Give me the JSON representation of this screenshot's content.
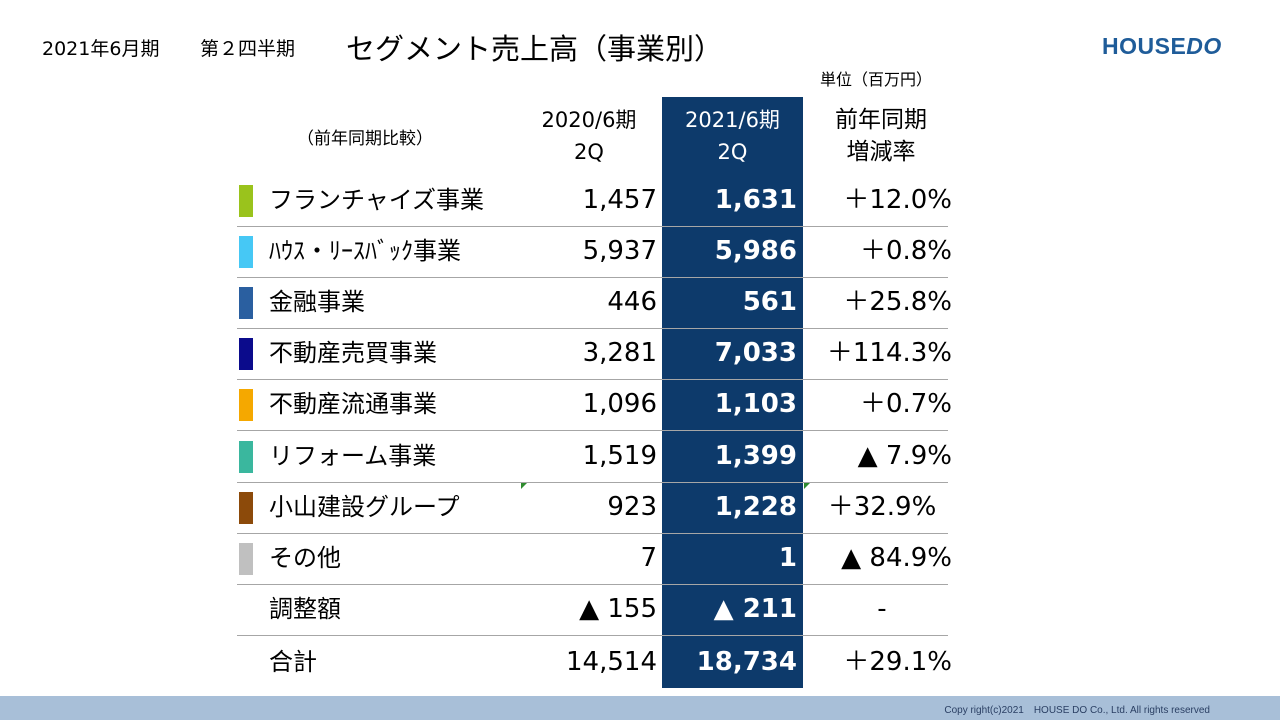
{
  "header": {
    "period": "2021年6月期",
    "quarter": "第２四半期",
    "title": "セグメント売上高（事業別）",
    "unit": "単位（百万円）",
    "compare_note": "（前年同期比較）"
  },
  "logo": {
    "text_house": "HOUSE",
    "text_do": "DO"
  },
  "columns": {
    "prev": [
      "2020/6期",
      "2Q"
    ],
    "curr": [
      "2021/6期",
      "2Q"
    ],
    "rate": [
      "前年同期",
      "増減率"
    ]
  },
  "colors": {
    "current_column_bg": "#0d3a6b",
    "footer_bar": "#a8bfd8",
    "logo": "#1f5c99"
  },
  "rows": [
    {
      "label": "フランチャイズ事業",
      "prev": "1,457",
      "curr": "1,631",
      "rate": "＋12.0%",
      "marker_color": "#9ac31c"
    },
    {
      "label": "ﾊｳｽ・ﾘｰｽﾊﾞｯｸ事業",
      "prev": "5,937",
      "curr": "5,986",
      "rate": "＋0.8%",
      "marker_color": "#46c8f5"
    },
    {
      "label": "金融事業",
      "prev": "446",
      "curr": "561",
      "rate": "＋25.8%",
      "marker_color": "#2a5fa0"
    },
    {
      "label": "不動産売買事業",
      "prev": "3,281",
      "curr": "7,033",
      "rate": "＋114.3%",
      "marker_color": "#0b0b8c"
    },
    {
      "label": "不動産流通事業",
      "prev": "1,096",
      "curr": "1,103",
      "rate": "＋0.7%",
      "marker_color": "#f5a800"
    },
    {
      "label": "リフォーム事業",
      "prev": "1,519",
      "curr": "1,399",
      "rate": "▲ 7.9%",
      "marker_color": "#3ab79e"
    },
    {
      "label": "小山建設グループ",
      "prev": "923",
      "curr": "1,228",
      "rate": "＋32.9%",
      "marker_color": "#8c4a0a"
    },
    {
      "label": "その他",
      "prev": "7",
      "curr": "1",
      "rate": "▲ 84.9%",
      "marker_color": "#c0c0c0"
    },
    {
      "label": "調整額",
      "prev": "▲ 155",
      "curr": "▲ 211",
      "rate": "-",
      "marker_color": ""
    },
    {
      "label": "合計",
      "prev": "14,514",
      "curr": "18,734",
      "rate": "＋29.1%",
      "marker_color": ""
    }
  ],
  "footer": {
    "copyright": "Copy right(c)2021　HOUSE DO Co., Ltd. All rights reserved"
  }
}
